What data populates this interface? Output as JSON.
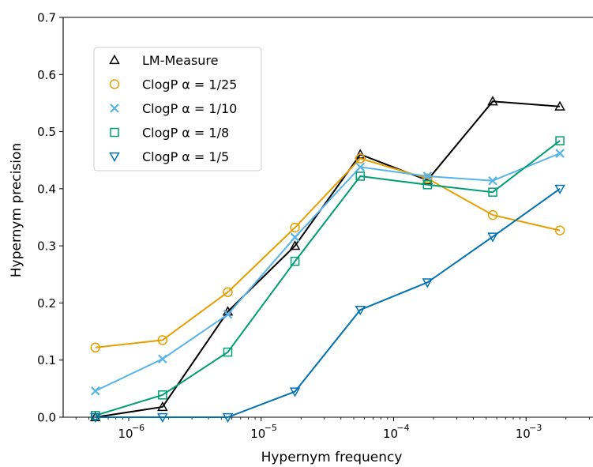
{
  "chart_data": {
    "type": "line",
    "title": "",
    "xlabel": "Hypernym frequency",
    "ylabel": "Hypernym precision",
    "xscale": "log",
    "xlim": [
      3.2e-07,
      0.0032
    ],
    "ylim": [
      0,
      0.7
    ],
    "grid": false,
    "legend_position": "upper-left",
    "x": [
      5.6e-07,
      1.8e-06,
      5.6e-06,
      1.8e-05,
      5.6e-05,
      0.00018,
      0.00056,
      0.0018
    ],
    "x_ticks": [
      {
        "value": 1e-06,
        "mantissa": "10",
        "exp": "−6"
      },
      {
        "value": 1e-05,
        "mantissa": "10",
        "exp": "−5"
      },
      {
        "value": 0.0001,
        "mantissa": "10",
        "exp": "−4"
      },
      {
        "value": 0.001,
        "mantissa": "10",
        "exp": "−3"
      }
    ],
    "y_ticks": [
      "0.0",
      "0.1",
      "0.2",
      "0.3",
      "0.4",
      "0.5",
      "0.6",
      "0.7"
    ],
    "series": [
      {
        "name": "LM-Measure",
        "color": "#000000",
        "marker": "triangle-up",
        "values": [
          0.0,
          0.018,
          0.185,
          0.3,
          0.46,
          0.415,
          0.553,
          0.544
        ]
      },
      {
        "name": "ClogP α = 1/25",
        "color": "#E69F00",
        "marker": "circle",
        "values": [
          0.122,
          0.135,
          0.219,
          0.332,
          0.453,
          0.418,
          0.354,
          0.327
        ]
      },
      {
        "name": "ClogP α = 1/10",
        "color": "#56B4E9",
        "marker": "x",
        "values": [
          0.046,
          0.102,
          0.18,
          0.315,
          0.438,
          0.422,
          0.414,
          0.462
        ]
      },
      {
        "name": "ClogP α = 1/8",
        "color": "#009E73",
        "marker": "square",
        "values": [
          0.003,
          0.039,
          0.114,
          0.273,
          0.422,
          0.407,
          0.394,
          0.484
        ]
      },
      {
        "name": "ClogP α = 1/5",
        "color": "#0072B2",
        "marker": "triangle-down",
        "values": [
          0.0,
          0.0,
          0.0,
          0.045,
          0.188,
          0.236,
          0.316,
          0.4
        ]
      }
    ]
  }
}
